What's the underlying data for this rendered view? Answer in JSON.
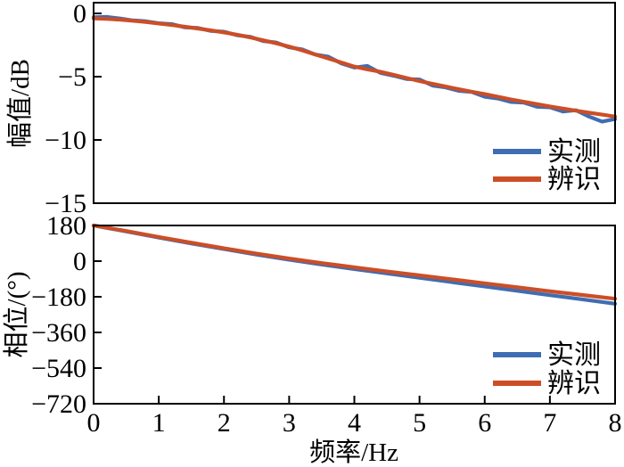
{
  "figure": {
    "background": "#FFFFFF",
    "axis_color": "#000000"
  },
  "chart_data": [
    {
      "type": "line",
      "panel": "magnitude",
      "title": "",
      "xlabel": "",
      "ylabel": "幅值/dB",
      "xlim": [
        0,
        8
      ],
      "ylim": [
        -15,
        0.85
      ],
      "grid": false,
      "legend": {
        "position": "lower-right",
        "entries": [
          "实测",
          "辨识"
        ]
      },
      "yticks": {
        "values": [
          0,
          -5,
          -10,
          -15
        ],
        "labels": [
          "0",
          "−5",
          "−10",
          "−15"
        ]
      },
      "xticks": {
        "values": [],
        "labels": []
      },
      "series": [
        {
          "name": "实测",
          "color": "#3F6DB3",
          "x": [
            0,
            0.2,
            0.4,
            0.6,
            0.8,
            1.0,
            1.2,
            1.4,
            1.6,
            1.8,
            2.0,
            2.2,
            2.4,
            2.6,
            2.8,
            3.0,
            3.2,
            3.4,
            3.6,
            3.8,
            4.0,
            4.2,
            4.4,
            4.6,
            4.8,
            5.0,
            5.2,
            5.4,
            5.6,
            5.8,
            6.0,
            6.2,
            6.4,
            6.6,
            6.8,
            7.0,
            7.2,
            7.4,
            7.6,
            7.8,
            8.0
          ],
          "y": [
            -0.3,
            -0.28,
            -0.4,
            -0.55,
            -0.62,
            -0.78,
            -0.85,
            -1.1,
            -1.15,
            -1.38,
            -1.45,
            -1.72,
            -1.85,
            -2.18,
            -2.3,
            -2.68,
            -2.85,
            -3.25,
            -3.42,
            -3.95,
            -4.28,
            -4.15,
            -4.7,
            -4.92,
            -5.18,
            -5.22,
            -5.7,
            -5.85,
            -6.12,
            -6.2,
            -6.58,
            -6.72,
            -7.0,
            -7.05,
            -7.38,
            -7.42,
            -7.75,
            -7.65,
            -8.15,
            -8.55,
            -8.35
          ]
        },
        {
          "name": "辨识",
          "color": "#CD4E26",
          "x": [
            0,
            0.2,
            0.4,
            0.6,
            0.8,
            1.0,
            1.2,
            1.4,
            1.6,
            1.8,
            2.0,
            2.2,
            2.4,
            2.6,
            2.8,
            3.0,
            3.2,
            3.4,
            3.6,
            3.8,
            4.0,
            4.2,
            4.4,
            4.6,
            4.8,
            5.0,
            5.2,
            5.4,
            5.6,
            5.8,
            6.0,
            6.2,
            6.4,
            6.6,
            6.8,
            7.0,
            7.2,
            7.4,
            7.6,
            7.8,
            8.0
          ],
          "y": [
            -0.4,
            -0.43,
            -0.49,
            -0.58,
            -0.68,
            -0.8,
            -0.92,
            -1.05,
            -1.19,
            -1.34,
            -1.5,
            -1.68,
            -1.89,
            -2.12,
            -2.36,
            -2.62,
            -2.92,
            -3.24,
            -3.56,
            -3.88,
            -4.2,
            -4.42,
            -4.62,
            -4.85,
            -5.1,
            -5.35,
            -5.57,
            -5.78,
            -5.99,
            -6.19,
            -6.38,
            -6.59,
            -6.79,
            -6.98,
            -7.17,
            -7.35,
            -7.52,
            -7.69,
            -7.85,
            -8.0,
            -8.15
          ]
        }
      ]
    },
    {
      "type": "line",
      "panel": "phase",
      "title": "",
      "xlabel": "频率/Hz",
      "ylabel": "相位/(°)",
      "xlim": [
        0,
        8
      ],
      "ylim": [
        -720,
        180
      ],
      "grid": false,
      "legend": {
        "position": "lower-right",
        "entries": [
          "实测",
          "辨识"
        ]
      },
      "yticks": {
        "values": [
          180,
          0,
          -180,
          -360,
          -540,
          -720
        ],
        "labels": [
          "180",
          "0",
          "−180",
          "−360",
          "−540",
          "−720"
        ]
      },
      "xticks": {
        "values": [
          0,
          1,
          2,
          3,
          4,
          5,
          6,
          7,
          8
        ],
        "labels": [
          "0",
          "1",
          "2",
          "3",
          "4",
          "5",
          "6",
          "7",
          "8"
        ]
      },
      "series": [
        {
          "name": "实测",
          "color": "#3F6DB3",
          "x": [
            0,
            0.5,
            1.0,
            1.5,
            2.0,
            2.5,
            3.0,
            3.5,
            4.0,
            4.5,
            5.0,
            5.5,
            6.0,
            6.5,
            7.0,
            7.5,
            8.0
          ],
          "y": [
            180,
            150,
            119,
            89,
            61,
            33,
            7,
            -17,
            -40,
            -62,
            -84,
            -106,
            -128,
            -150,
            -172,
            -193,
            -215
          ]
        },
        {
          "name": "辨识",
          "color": "#CD4E26",
          "x": [
            0,
            0.5,
            1.0,
            1.5,
            2.0,
            2.5,
            3.0,
            3.5,
            4.0,
            4.5,
            5.0,
            5.5,
            6.0,
            6.5,
            7.0,
            7.5,
            8.0
          ],
          "y": [
            180,
            152,
            122,
            93,
            65,
            38,
            13,
            -10,
            -31,
            -52,
            -72,
            -92,
            -112,
            -132,
            -152,
            -171,
            -190
          ]
        }
      ]
    }
  ]
}
